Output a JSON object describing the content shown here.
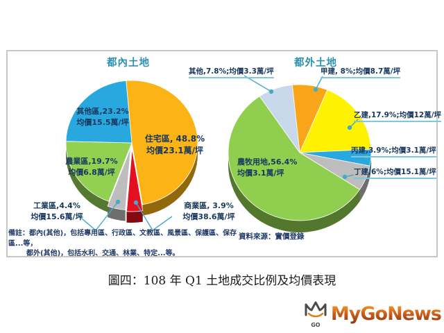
{
  "colors": {
    "title_teal": "#2E90B0",
    "label_navy": "#17375D",
    "leader_teal": "#45A9C8",
    "underline_teal": "#7EC8DC",
    "frame_border": "#C8C8C8",
    "logo_orange": "#C05A12"
  },
  "chart_data": [
    {
      "type": "pie",
      "title": "都內土地",
      "legend_position": "on-slice-callouts",
      "slices": [
        {
          "label": "住宅區",
          "percent": 48.8,
          "avg_price": "均價23.1萬/坪",
          "color": "#FCB315"
        },
        {
          "label": "商業區",
          "percent": 3.9,
          "avg_price": "均價38.6萬/坪",
          "color": "#E4101F",
          "explode": 9
        },
        {
          "label": "工業區",
          "percent": 4.4,
          "avg_price": "均價15.6萬/坪",
          "color": "#BDBDBD",
          "explode": 7
        },
        {
          "label": "農業區",
          "percent": 19.7,
          "avg_price": "均價6.8萬/坪",
          "color": "#92D052"
        },
        {
          "label": "其他區",
          "percent": 23.2,
          "avg_price": "均價15.5萬/坪",
          "color": "#29A8E0"
        }
      ]
    },
    {
      "type": "pie",
      "title": "都外土地",
      "legend_position": "callouts",
      "slices": [
        {
          "label": "甲建",
          "percent": 8,
          "avg_price": "均價8.7萬/坪",
          "color": "#F9A51A"
        },
        {
          "label": "乙建",
          "percent": 17.9,
          "avg_price": "均價12萬/坪",
          "color": "#FEF102"
        },
        {
          "label": "丙建",
          "percent": 3.9,
          "avg_price": "均價3.1萬/坪",
          "color": "#29A8E0"
        },
        {
          "label": "丁建",
          "percent": 6,
          "avg_price": "均價15.1萬/坪",
          "color": "#BDBDBD"
        },
        {
          "label": "農牧用地",
          "percent": 56.4,
          "avg_price": "均價3.1萬/坪",
          "color": "#8FCE4E"
        },
        {
          "label": "其他",
          "percent": 7.8,
          "avg_price": "均價3.3萬/坪",
          "color": "#C8D8EA"
        }
      ]
    }
  ],
  "titles": {
    "left": "都內土地",
    "right": "都外土地"
  },
  "labels": {
    "zhuzhai_1": "住宅區, 48.8%",
    "zhuzhai_2": "均價23.1萬/坪",
    "qitaqu_1": "其他區,23.2%",
    "qitaqu_2": "均價15.5萬/坪",
    "nongye_1": "農業區,19.7%",
    "nongye_2": "均價6.8萬/坪",
    "gongye_1": "工業區,4.4%",
    "gongye_2": "均價15.6萬/坪",
    "shangye_1": "商業區, 3.9%",
    "shangye_2": "均價38.6萬/坪",
    "r_qita": "其他,7.8%;均價3.3萬/坪",
    "r_jia": "甲建, 8%;均價8.7萬/坪",
    "r_yi": "乙建,17.9%;均價12萬/坪",
    "r_bing": "丙建,3.9%;均價3.1萬/坪",
    "r_ding": "丁建,6%;均價15.1萬/坪",
    "nongmu_1": "農牧用地,56.4%",
    "nongmu_2": "均價3.1萬/坪"
  },
  "note": {
    "line1": "備註：都內(其他)，包括專用區、行政區、文教區、風景區、保護區、保存區...等，",
    "line2": "都外(其他)，包括水利、交通、林業、特定...等。"
  },
  "source": "資料來源：實價登錄",
  "caption": "圖四：108 年 Q1 土地成交比例及均價表現",
  "logo": {
    "text": "MyGoNews",
    "icon_label": "GO"
  }
}
